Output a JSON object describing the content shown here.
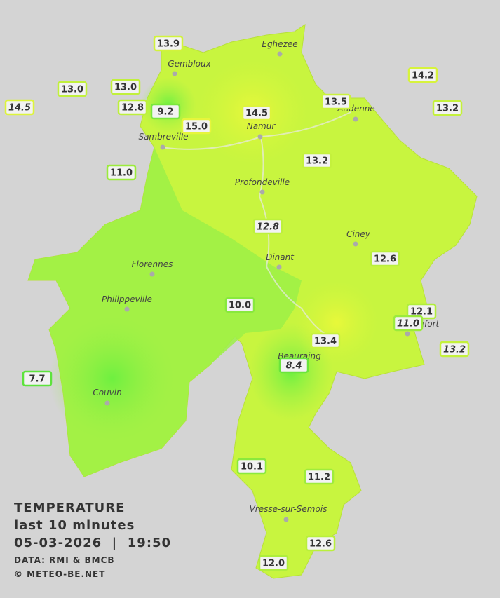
{
  "stations": [
    "13.9",
    "13.0",
    "13.0",
    "14.5",
    "12.8",
    "9.2",
    "15.0",
    "14.5",
    "13.5",
    "14.2",
    "13.2",
    "11.0",
    "13.2",
    "12.8",
    "12.6",
    "10.0",
    "12.1",
    "11.0",
    "13.4",
    "13.2",
    "8.4",
    "7.7",
    "10.1",
    "11.2",
    "12.6",
    "12.0"
  ],
  "towns": [
    "Eghezee",
    "Gembloux",
    "Andenne",
    "Namur",
    "Sambreville",
    "Profondeville",
    "Ciney",
    "Dinant",
    "Florennes",
    "Philippeville",
    "Rochefort",
    "Beauraing",
    "Couvin",
    "Vresse-sur-Semois"
  ],
  "legend": {
    "title": "TEMPERATURE",
    "period": "last 10 minutes",
    "timestamp": "05-03-2026  |  19:50",
    "source": "DATA: RMI & BMCB",
    "credit": "© METEO-BE.NET"
  }
}
